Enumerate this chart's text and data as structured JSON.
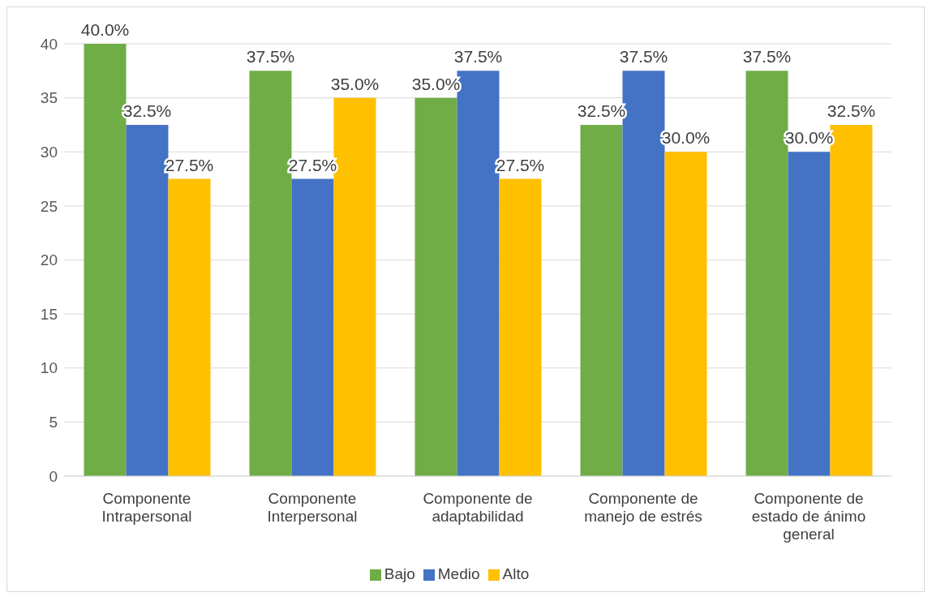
{
  "chart_data": {
    "type": "bar",
    "categories": [
      "Componente Intrapersonal",
      "Componente Interpersonal",
      "Componente de adaptabilidad",
      "Componente de manejo de estrés",
      "Componente de estado de ánimo general"
    ],
    "series": [
      {
        "name": "Bajo",
        "color": "#70ad47",
        "values": [
          40,
          37.5,
          35,
          32.5,
          37.5
        ],
        "value_labels": [
          "40.0%",
          "37.5%",
          "35.0%",
          "32.5%",
          "37.5%"
        ]
      },
      {
        "name": "Medio",
        "color": "#4472c4",
        "values": [
          32.5,
          27.5,
          37.5,
          37.5,
          30
        ],
        "value_labels": [
          "32.5%",
          "27.5%",
          "37.5%",
          "37.5%",
          "30.0%"
        ]
      },
      {
        "name": "Alto",
        "color": "#ffc000",
        "values": [
          27.5,
          35,
          27.5,
          30,
          32.5
        ],
        "value_labels": [
          "27.5%",
          "35.0%",
          "27.5%",
          "30.0%",
          "32.5%"
        ]
      }
    ],
    "ylim": [
      0,
      40
    ],
    "yticks": [
      0,
      5,
      10,
      15,
      20,
      25,
      30,
      35,
      40
    ],
    "grid": "y",
    "legend": "bottom"
  }
}
